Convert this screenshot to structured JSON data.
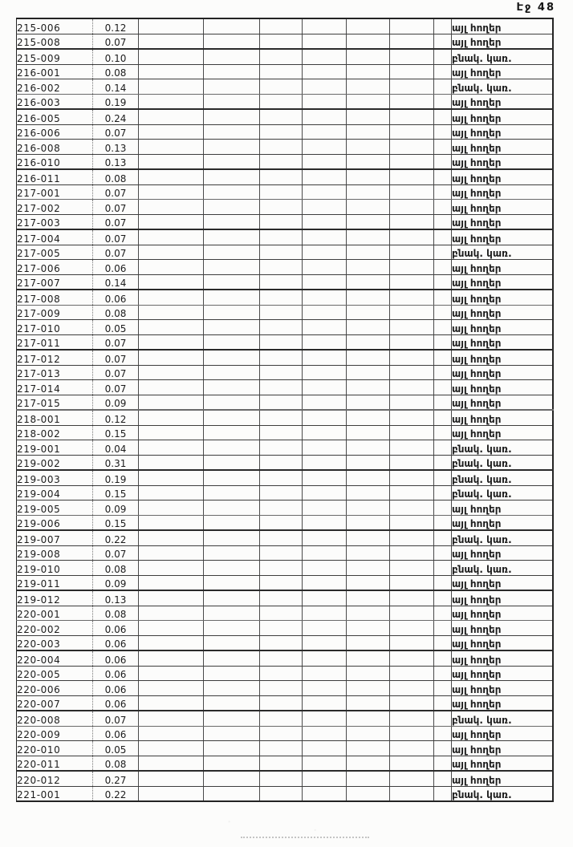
{
  "page": {
    "label": "Էջ 48"
  },
  "table": {
    "land_use_values": [
      "այլ հողեր",
      "բնակ. կառ."
    ],
    "rows": [
      {
        "code": "215-006",
        "area": "0.12",
        "use": "այլ հողեր"
      },
      {
        "code": "215-008",
        "area": "0.07",
        "use": "այլ հողեր"
      },
      {
        "code": "215-009",
        "area": "0.10",
        "use": "բնակ. կառ."
      },
      {
        "code": "216-001",
        "area": "0.08",
        "use": "այլ հողեր"
      },
      {
        "code": "216-002",
        "area": "0.14",
        "use": "բնակ. կառ."
      },
      {
        "code": "216-003",
        "area": "0.19",
        "use": "այլ հողեր"
      },
      {
        "code": "216-005",
        "area": "0.24",
        "use": "այլ հողեր"
      },
      {
        "code": "216-006",
        "area": "0.07",
        "use": "այլ հողեր"
      },
      {
        "code": "216-008",
        "area": "0.13",
        "use": "այլ հողեր"
      },
      {
        "code": "216-010",
        "area": "0.13",
        "use": "այլ հողեր"
      },
      {
        "code": "216-011",
        "area": "0.08",
        "use": "այլ հողեր"
      },
      {
        "code": "217-001",
        "area": "0.07",
        "use": "այլ հողեր"
      },
      {
        "code": "217-002",
        "area": "0.07",
        "use": "այլ հողեր"
      },
      {
        "code": "217-003",
        "area": "0.07",
        "use": "այլ հողեր"
      },
      {
        "code": "217-004",
        "area": "0.07",
        "use": "այլ հողեր"
      },
      {
        "code": "217-005",
        "area": "0.07",
        "use": "բնակ. կառ."
      },
      {
        "code": "217-006",
        "area": "0.06",
        "use": "այլ հողեր"
      },
      {
        "code": "217-007",
        "area": "0.14",
        "use": "այլ հողեր"
      },
      {
        "code": "217-008",
        "area": "0.06",
        "use": "այլ հողեր"
      },
      {
        "code": "217-009",
        "area": "0.08",
        "use": "այլ հողեր"
      },
      {
        "code": "217-010",
        "area": "0.05",
        "use": "այլ հողեր"
      },
      {
        "code": "217-011",
        "area": "0.07",
        "use": "այլ հողեր"
      },
      {
        "code": "217-012",
        "area": "0.07",
        "use": "այլ հողեր"
      },
      {
        "code": "217-013",
        "area": "0.07",
        "use": "այլ հողեր"
      },
      {
        "code": "217-014",
        "area": "0.07",
        "use": "այլ հողեր"
      },
      {
        "code": "217-015",
        "area": "0.09",
        "use": "այլ հողեր"
      },
      {
        "code": "218-001",
        "area": "0.12",
        "use": "այլ հողեր"
      },
      {
        "code": "218-002",
        "area": "0.15",
        "use": "այլ հողեր"
      },
      {
        "code": "219-001",
        "area": "0.04",
        "use": "բնակ. կառ."
      },
      {
        "code": "219-002",
        "area": "0.31",
        "use": "բնակ. կառ."
      },
      {
        "code": "219-003",
        "area": "0.19",
        "use": "բնակ. կառ."
      },
      {
        "code": "219-004",
        "area": "0.15",
        "use": "բնակ. կառ."
      },
      {
        "code": "219-005",
        "area": "0.09",
        "use": "այլ հողեր"
      },
      {
        "code": "219-006",
        "area": "0.15",
        "use": "այլ հողեր"
      },
      {
        "code": "219-007",
        "area": "0.22",
        "use": "բնակ. կառ."
      },
      {
        "code": "219-008",
        "area": "0.07",
        "use": "այլ հողեր"
      },
      {
        "code": "219-010",
        "area": "0.08",
        "use": "բնակ. կառ."
      },
      {
        "code": "219-011",
        "area": "0.09",
        "use": "այլ հողեր"
      },
      {
        "code": "219-012",
        "area": "0.13",
        "use": "այլ հողեր"
      },
      {
        "code": "220-001",
        "area": "0.08",
        "use": "այլ հողեր"
      },
      {
        "code": "220-002",
        "area": "0.06",
        "use": "այլ հողեր"
      },
      {
        "code": "220-003",
        "area": "0.06",
        "use": "այլ հողեր"
      },
      {
        "code": "220-004",
        "area": "0.06",
        "use": "այլ հողեր"
      },
      {
        "code": "220-005",
        "area": "0.06",
        "use": "այլ հողեր"
      },
      {
        "code": "220-006",
        "area": "0.06",
        "use": "այլ հողեր"
      },
      {
        "code": "220-007",
        "area": "0.06",
        "use": "այլ հողեր"
      },
      {
        "code": "220-008",
        "area": "0.07",
        "use": "բնակ. կառ."
      },
      {
        "code": "220-009",
        "area": "0.06",
        "use": "այլ հողեր"
      },
      {
        "code": "220-010",
        "area": "0.05",
        "use": "այլ հողեր"
      },
      {
        "code": "220-011",
        "area": "0.08",
        "use": "այլ հողեր"
      },
      {
        "code": "220-012",
        "area": "0.27",
        "use": "այլ հողեր"
      },
      {
        "code": "221-001",
        "area": "0.22",
        "use": "բնակ. կառ."
      }
    ]
  }
}
